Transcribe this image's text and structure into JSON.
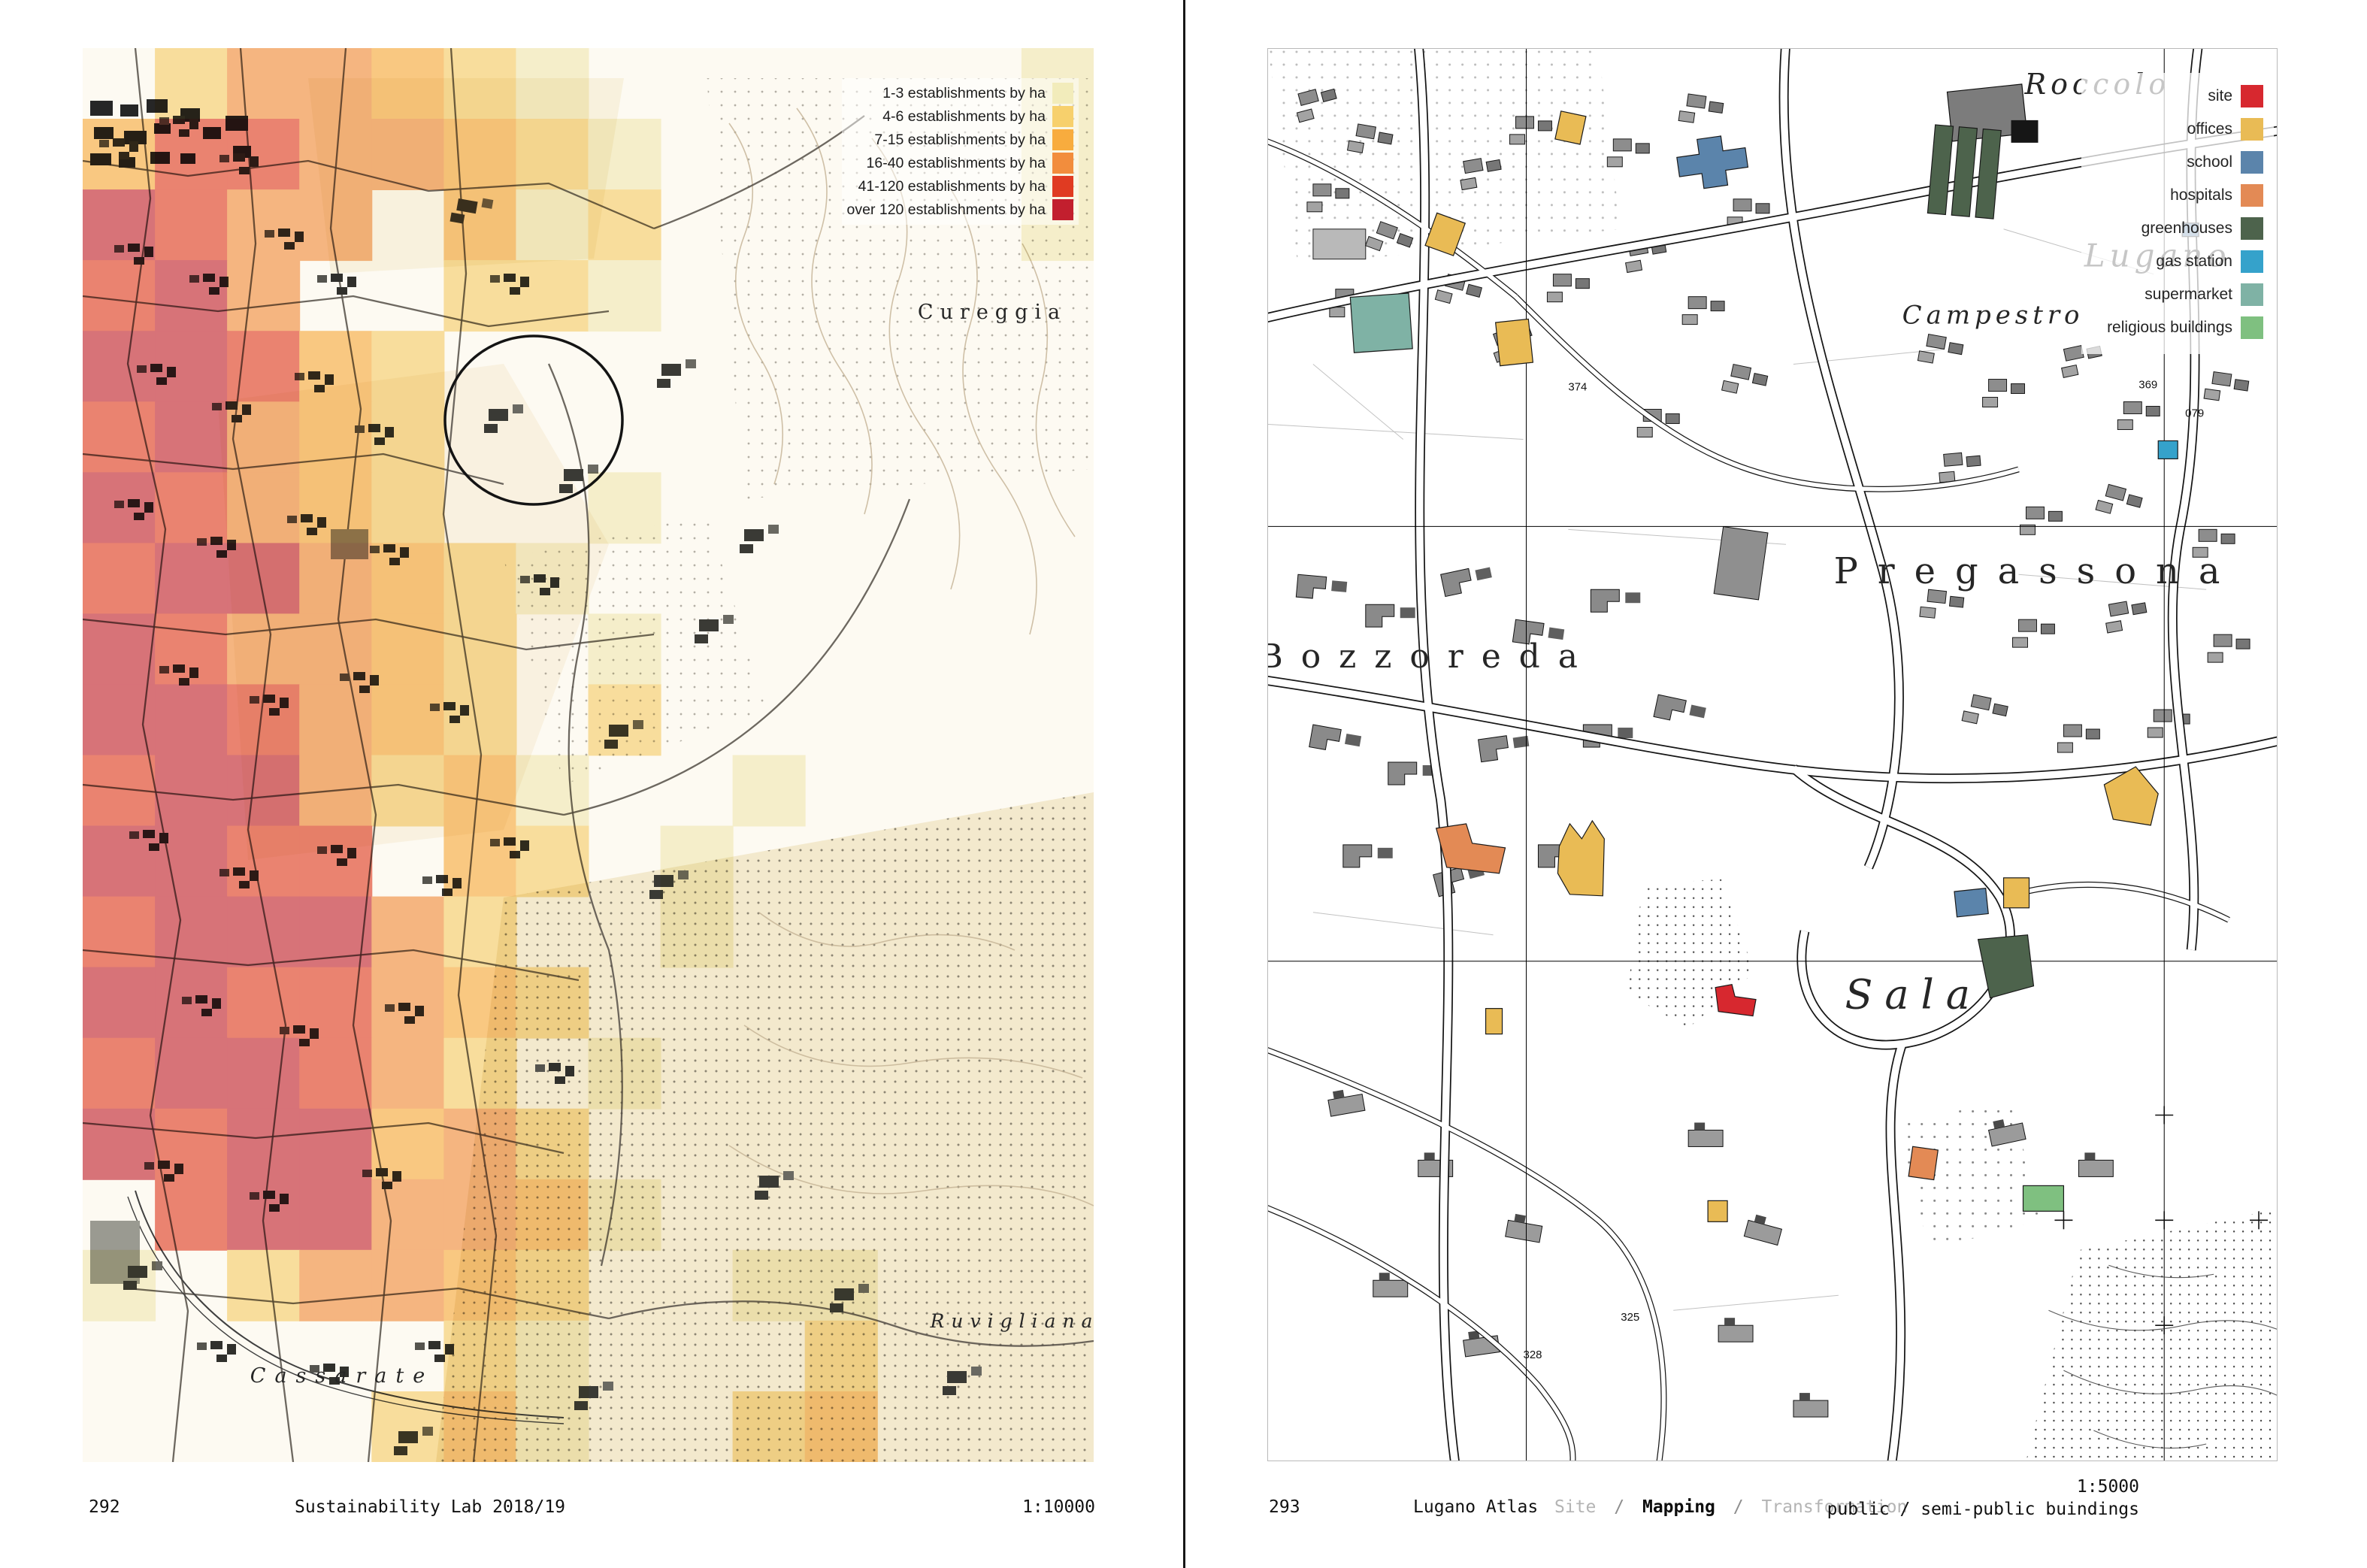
{
  "palette": {
    "site": "#d7282f",
    "offices": "#e9bb55",
    "school": "#5b84ab",
    "hospitals": "#e38a55",
    "greenhouses": "#4d634c",
    "gas_station": "#35a2cb",
    "supermarket": "#7fb2a5",
    "religious": "#7fc080",
    "heat": {
      "a": "#f2ecbb",
      "b": "#f7d06c",
      "c": "#f8ac3e",
      "d": "#f28d3d",
      "e": "#e03b22",
      "f": "#c21f2e"
    }
  },
  "left_page": {
    "page_number": "292",
    "footer_center": "Sustainability Lab 2018/19",
    "scale": "1:10000",
    "legend": [
      {
        "label": "1-3 establishments by ha",
        "key": "a"
      },
      {
        "label": "4-6 establishments by ha",
        "key": "b"
      },
      {
        "label": "7-15 establishments by ha",
        "key": "c"
      },
      {
        "label": "16-40 establishments by ha",
        "key": "d"
      },
      {
        "label": "41-120 establishments by ha",
        "key": "e"
      },
      {
        "label": "over 120 establishments by ha",
        "key": "f"
      }
    ],
    "heat_grid": {
      "cols": 14,
      "rows": 20,
      "cells": [
        ".bddcba......a",
        "ceeddcba.....a",
        "fedd.cab.....a",
        "efd..bba......",
        "ffecb.........",
        "efdcb.........",
        "fedcb..a......",
        "effdcba.......",
        "feddcb.a......",
        "ffedcb.b......",
        "effdbca..a....",
        "ffee.cb.a.....",
        "efffdb..a.....",
        "ffeedcb.......",
        "effedb.a......",
        "feffcdb.......",
        ".effddca......",
        "a.bddcb..aa...",
        ".....ba...b...",
        "....bca..bc..."
      ]
    },
    "map_labels": {
      "cureggia": "Cureggia",
      "cassarate": "Cassarate",
      "ruvigliana": "Ruvigliana"
    }
  },
  "right_page": {
    "page_number": "293",
    "footer_center": "Lugano Atlas",
    "breadcrumb": [
      {
        "text": "Site",
        "muted": true
      },
      {
        "text": "/",
        "muted": true
      },
      {
        "text": "Mapping",
        "muted": false
      },
      {
        "text": "/",
        "muted": true
      },
      {
        "text": "Transformation",
        "muted": true
      }
    ],
    "scale": "1:5000",
    "footer_right": "public / semi-public buindings",
    "legend": [
      {
        "label": "site",
        "key": "site"
      },
      {
        "label": "offices",
        "key": "offices"
      },
      {
        "label": "school",
        "key": "school"
      },
      {
        "label": "hospitals",
        "key": "hospitals"
      },
      {
        "label": "greenhouses",
        "key": "greenhouses"
      },
      {
        "label": "gas station",
        "key": "gas_station"
      },
      {
        "label": "supermarket",
        "key": "supermarket"
      },
      {
        "label": "religious buildings",
        "key": "religious"
      }
    ],
    "map_labels": {
      "district": "Pregassona",
      "bozzoreda": "Bozzoreda",
      "sala": "Sala",
      "campestro": "Campestro",
      "lugano": "Lugano",
      "roccolo": "Roccolo"
    },
    "map_numbers": [
      "374",
      "369",
      "079",
      "328",
      "325"
    ]
  }
}
